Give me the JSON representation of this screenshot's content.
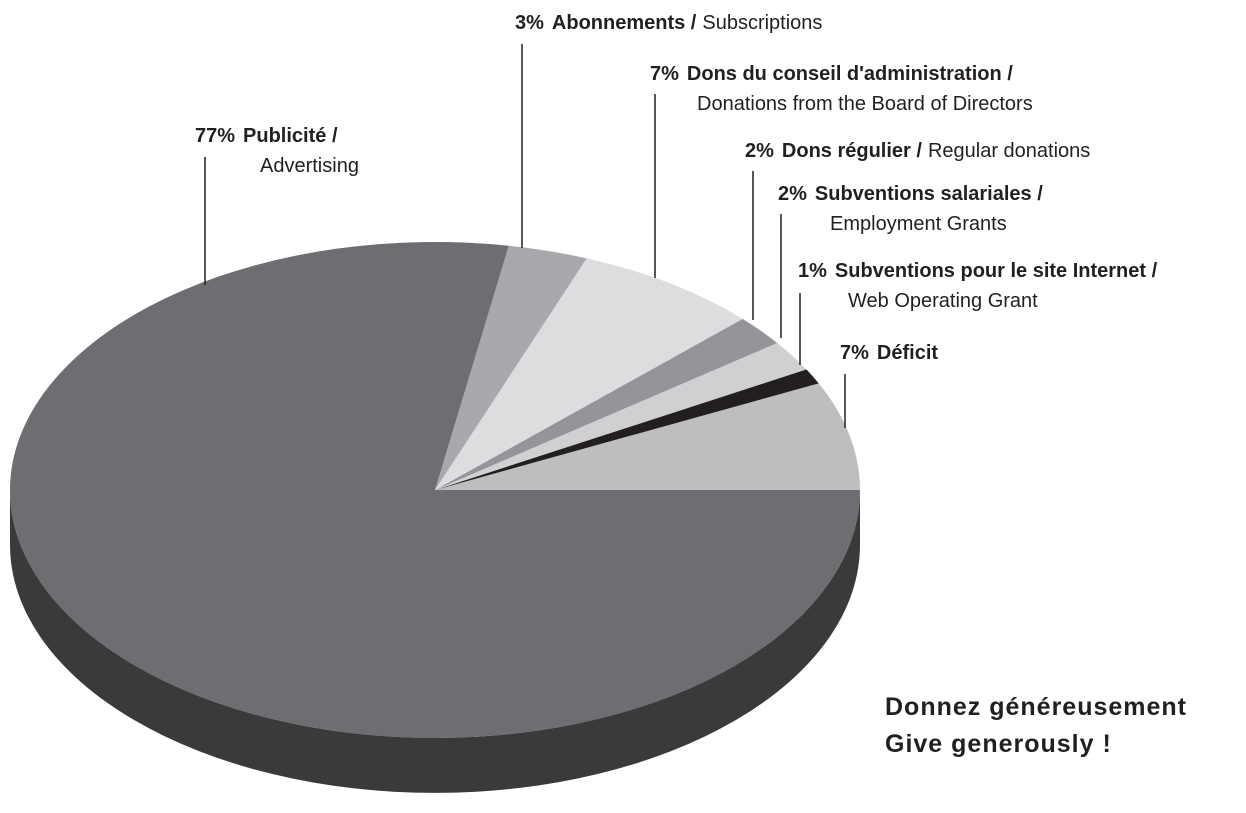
{
  "chart_data": {
    "type": "pie3d",
    "categories": [
      "Publicité /",
      "Abonnements /",
      "Dons du conseil d'administration /",
      "Dons régulier /",
      "Subventions salariales /",
      "Subventions pour le site Internet /",
      "Déficit"
    ],
    "category_translations": [
      "Advertising",
      "Subscriptions",
      "Donations from the Board of Directors",
      "Regular donations",
      "Employment Grants",
      "Web Operating Grant",
      null
    ],
    "values": [
      77,
      3,
      7,
      2,
      2,
      1,
      7
    ],
    "value_labels": [
      "77%",
      "3%",
      "7%",
      "2%",
      "2%",
      "1%",
      "7%"
    ],
    "colors": [
      "#6d6e71",
      "#a7a9ac",
      "#dcdddf",
      "#939598",
      "#cfd0d2",
      "#231f20",
      "#bcbec0"
    ],
    "annotations": [
      "Donnez généreusement",
      "Give generously !"
    ]
  }
}
